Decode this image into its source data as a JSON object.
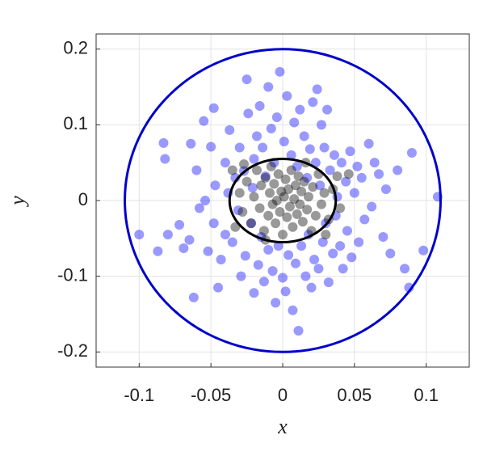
{
  "chart_data": {
    "type": "scatter",
    "xlabel": "x",
    "ylabel": "y",
    "xlim": [
      -0.13,
      0.13
    ],
    "ylim": [
      -0.22,
      0.22
    ],
    "xticks": [
      -0.1,
      -0.05,
      0,
      0.05,
      0.1
    ],
    "yticks": [
      -0.2,
      -0.1,
      0,
      0.1,
      0.2
    ],
    "grid": true,
    "series": [
      {
        "color": "#0000ff",
        "opacity": 0.4,
        "x": [
          -0.1,
          -0.083,
          -0.082,
          -0.072,
          -0.069,
          -0.065,
          -0.064,
          -0.062,
          -0.06,
          -0.058,
          -0.055,
          -0.054,
          -0.052,
          -0.05,
          -0.048,
          -0.047,
          -0.048,
          -0.045,
          -0.043,
          -0.04,
          -0.04,
          -0.038,
          -0.037,
          -0.035,
          -0.033,
          -0.031,
          -0.03,
          -0.029,
          -0.027,
          -0.026,
          -0.025,
          -0.024,
          -0.022,
          -0.021,
          -0.02,
          -0.02,
          -0.018,
          -0.017,
          -0.016,
          -0.015,
          -0.014,
          -0.013,
          -0.012,
          -0.01,
          -0.01,
          -0.008,
          -0.007,
          -0.006,
          -0.005,
          -0.004,
          -0.003,
          -0.002,
          0.0,
          0.001,
          0.002,
          0.003,
          0.004,
          0.006,
          0.007,
          0.008,
          0.009,
          0.01,
          0.011,
          0.012,
          0.013,
          0.015,
          0.016,
          0.017,
          0.018,
          0.019,
          0.02,
          0.021,
          0.022,
          0.023,
          0.024,
          0.025,
          0.026,
          0.027,
          0.028,
          0.029,
          0.03,
          0.031,
          0.032,
          0.033,
          0.035,
          0.036,
          0.037,
          0.038,
          0.04,
          0.041,
          0.042,
          0.044,
          0.045,
          0.047,
          0.048,
          0.05,
          0.052,
          0.053,
          0.055,
          0.057,
          0.06,
          0.062,
          0.064,
          0.067,
          0.07,
          0.072,
          0.075,
          0.08,
          0.085,
          0.088,
          0.09,
          0.098,
          0.108,
          -0.087,
          -0.08
        ],
        "values": [
          -0.045,
          0.076,
          0.055,
          -0.032,
          -0.063,
          -0.052,
          0.075,
          -0.128,
          0.04,
          -0.01,
          0.105,
          0.0,
          -0.067,
          0.071,
          -0.03,
          0.02,
          0.122,
          -0.115,
          -0.078,
          0.05,
          -0.045,
          0.01,
          0.093,
          -0.055,
          0.03,
          -0.013,
          0.07,
          -0.1,
          0.039,
          -0.073,
          0.16,
          0.115,
          -0.03,
          0.017,
          0.055,
          -0.122,
          0.085,
          -0.085,
          0.125,
          -0.048,
          0.07,
          -0.107,
          0.032,
          -0.065,
          0.15,
          0.095,
          -0.093,
          0.05,
          -0.135,
          0.11,
          -0.06,
          0.17,
          -0.102,
          0.078,
          -0.12,
          0.138,
          -0.072,
          0.06,
          -0.145,
          0.103,
          -0.083,
          0.045,
          -0.172,
          0.12,
          -0.06,
          0.085,
          -0.1,
          0.03,
          -0.045,
          0.068,
          -0.115,
          0.13,
          -0.078,
          0.05,
          0.147,
          -0.09,
          0.02,
          0.1,
          -0.055,
          0.07,
          -0.03,
          0.12,
          -0.108,
          0.04,
          -0.07,
          0.06,
          -0.02,
          0.005,
          -0.06,
          0.05,
          -0.09,
          0.025,
          -0.04,
          0.065,
          -0.075,
          0.01,
          0.045,
          -0.055,
          0.03,
          -0.025,
          0.075,
          -0.008,
          0.05,
          0.035,
          -0.048,
          0.015,
          -0.07,
          0.04,
          -0.09,
          -0.115,
          0.063,
          -0.066,
          0.005,
          -0.067,
          -0.045
        ]
      },
      {
        "color": "#000000",
        "opacity": 0.4,
        "x": [
          -0.03,
          -0.028,
          -0.025,
          -0.022,
          -0.02,
          -0.018,
          -0.016,
          -0.015,
          -0.013,
          -0.012,
          -0.01,
          -0.009,
          -0.008,
          -0.007,
          -0.006,
          -0.005,
          -0.004,
          -0.003,
          -0.002,
          -0.001,
          0.0,
          0.001,
          0.002,
          0.003,
          0.004,
          0.005,
          0.006,
          0.007,
          0.008,
          0.009,
          0.01,
          0.011,
          0.012,
          0.013,
          0.014,
          0.015,
          0.017,
          0.018,
          0.02,
          0.021,
          0.023,
          0.025,
          0.027,
          0.029,
          0.032,
          0.035,
          0.038,
          0.04,
          -0.033,
          -0.035,
          -0.027,
          0.016,
          -0.012,
          0.03,
          0.046
        ],
        "values": [
          0.01,
          -0.015,
          0.025,
          -0.03,
          0.005,
          0.04,
          -0.01,
          0.02,
          -0.04,
          0.03,
          -0.02,
          0.01,
          0.045,
          -0.005,
          0.022,
          -0.03,
          0.0,
          0.035,
          -0.015,
          0.012,
          -0.045,
          0.005,
          0.028,
          -0.022,
          0.015,
          -0.008,
          0.04,
          -0.035,
          0.002,
          0.02,
          -0.018,
          0.032,
          -0.005,
          0.012,
          -0.028,
          0.025,
          -0.012,
          0.005,
          -0.04,
          0.018,
          -0.02,
          0.035,
          -0.005,
          0.01,
          -0.025,
          0.015,
          0.032,
          -0.01,
          -0.035,
          0.04,
          0.048,
          0.05,
          -0.052,
          -0.045,
          0.035
        ]
      }
    ],
    "ellipses": [
      {
        "color": "#0000cc",
        "cx": 0,
        "cy": 0,
        "rx": 0.11,
        "ry": 0.2
      },
      {
        "color": "#000000",
        "cx": 0,
        "cy": 0,
        "rx": 0.037,
        "ry": 0.055
      }
    ]
  }
}
